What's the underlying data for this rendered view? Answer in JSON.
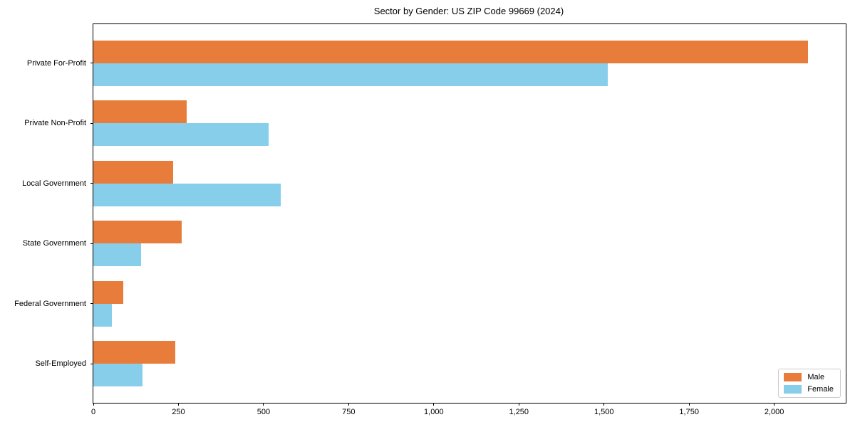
{
  "chart_data": {
    "type": "bar",
    "orientation": "horizontal",
    "title": "Sector by Gender: US ZIP Code 99669 (2024)",
    "categories": [
      "Private For-Profit",
      "Private Non-Profit",
      "Local Government",
      "State Government",
      "Federal Government",
      "Self-Employed"
    ],
    "series": [
      {
        "name": "Male",
        "color": "#e87d3b",
        "values": [
          2100,
          275,
          235,
          260,
          88,
          240
        ]
      },
      {
        "name": "Female",
        "color": "#87ceeb",
        "values": [
          1510,
          515,
          550,
          140,
          55,
          145
        ]
      }
    ],
    "xlabel": "",
    "ylabel": "",
    "xlim": [
      0,
      2210
    ],
    "xticks": [
      0,
      250,
      500,
      750,
      1000,
      1250,
      1500,
      1750,
      2000
    ],
    "xtick_labels": [
      "0",
      "250",
      "500",
      "750",
      "1,000",
      "1,250",
      "1,500",
      "1,750",
      "2,000"
    ],
    "grid": false,
    "legend_position": "lower right",
    "axis_color": "#000000",
    "background_color": "#ffffff"
  }
}
